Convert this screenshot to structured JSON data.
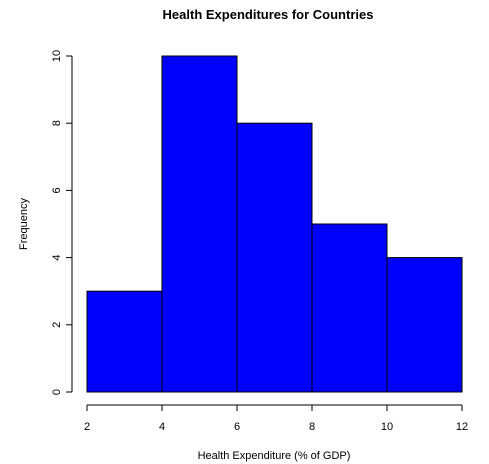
{
  "chart_data": {
    "type": "bar",
    "title": "Health Expenditures for Countries",
    "xlabel": "Health Expenditure (% of GDP)",
    "ylabel": "Frequency",
    "bins": [
      {
        "from": 2,
        "to": 4,
        "count": 3
      },
      {
        "from": 4,
        "to": 6,
        "count": 10
      },
      {
        "from": 6,
        "to": 8,
        "count": 8
      },
      {
        "from": 8,
        "to": 10,
        "count": 5
      },
      {
        "from": 10,
        "to": 12,
        "count": 4
      }
    ],
    "x_ticks": [
      "2",
      "4",
      "6",
      "8",
      "10",
      "12"
    ],
    "y_ticks": [
      "0",
      "2",
      "4",
      "6",
      "8",
      "10"
    ],
    "xlim": [
      2,
      12
    ],
    "ylim": [
      0,
      10
    ],
    "bar_color": "#0000ff",
    "grid": false
  }
}
